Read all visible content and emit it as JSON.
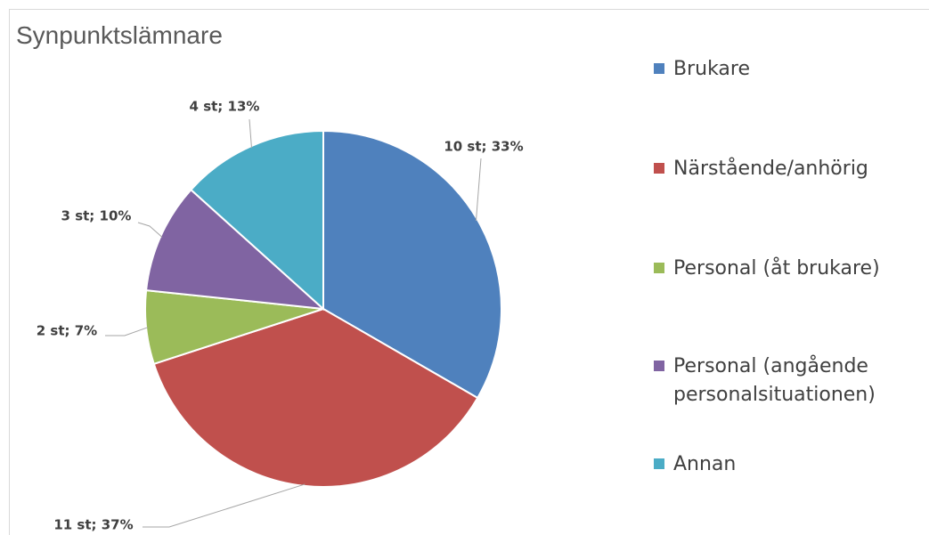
{
  "chart_data": {
    "type": "pie",
    "title": "Synpunktslämnare",
    "categories": [
      "Brukare",
      "Närstående/anhörig",
      "Personal (åt brukare)",
      "Personal (angående personalsituationen)",
      "Annan"
    ],
    "values": [
      10,
      11,
      2,
      3,
      4
    ],
    "value_labels": [
      "10 st; 33%",
      "11 st; 37%",
      "2 st; 7%",
      "3 st; 10%",
      "4 st; 13%"
    ],
    "colors": [
      "#4f81bd",
      "#c0504d",
      "#9bbb59",
      "#8064a2",
      "#4bacc6"
    ],
    "legend": "right"
  }
}
